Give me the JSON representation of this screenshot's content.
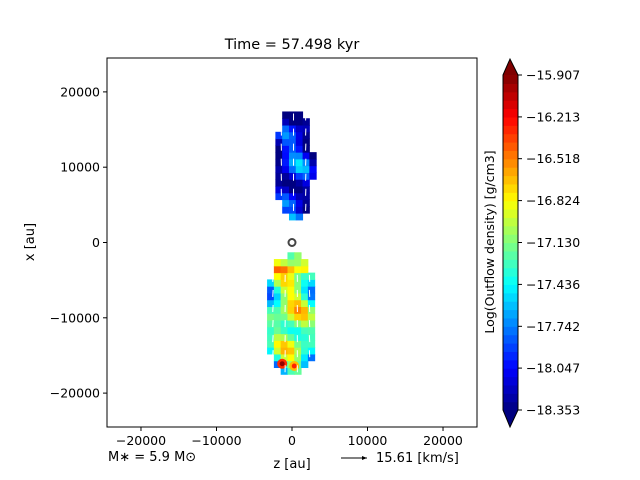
{
  "chart_data": {
    "type": "heatmap",
    "title": "Time = 57.498 kyr",
    "xlabel": "z [au]",
    "ylabel": "x [au]",
    "xlim": [
      -24500,
      24500
    ],
    "ylim": [
      -24500,
      24500
    ],
    "xticks": [
      -20000,
      -10000,
      0,
      10000,
      20000
    ],
    "xtick_labels": [
      "−20000",
      "−10000",
      "0",
      "10000",
      "20000"
    ],
    "yticks": [
      20000,
      10000,
      0,
      -10000,
      -20000
    ],
    "ytick_labels": [
      "20000",
      "10000",
      "0",
      "−10000",
      "−20000"
    ],
    "colorbar": {
      "label": "Log(Outflow density) [g/cm3]",
      "min": -18.353,
      "max": -15.907,
      "ticks": [
        -15.907,
        -16.213,
        -16.518,
        -16.824,
        -17.13,
        -17.436,
        -17.742,
        -18.047,
        -18.353
      ],
      "tick_labels": [
        "−15.907",
        "−16.213",
        "−16.518",
        "−16.824",
        "−17.130",
        "−17.436",
        "−17.742",
        "−18.047",
        "−18.353"
      ],
      "colormap": "jet",
      "extend": "both"
    },
    "lobes": [
      {
        "name": "upper",
        "z_extent": [
          -2200,
          2800
        ],
        "x_extent": [
          3000,
          17500
        ],
        "typical_log_density": -17.9
      },
      {
        "name": "lower",
        "z_extent": [
          -3300,
          3300
        ],
        "x_extent": [
          -17500,
          -1500
        ],
        "typical_log_density": -17.1
      }
    ],
    "hotspots": [
      {
        "z": -1300,
        "x": -16100,
        "log_density": -15.95
      },
      {
        "z": 300,
        "x": -16400,
        "log_density": -16.3
      }
    ],
    "sink": {
      "z": 0,
      "x": 0
    },
    "annotations": {
      "mass": "M∗ = 5.9 M⊙",
      "velocity_key": "15.61 [km/s]"
    }
  }
}
